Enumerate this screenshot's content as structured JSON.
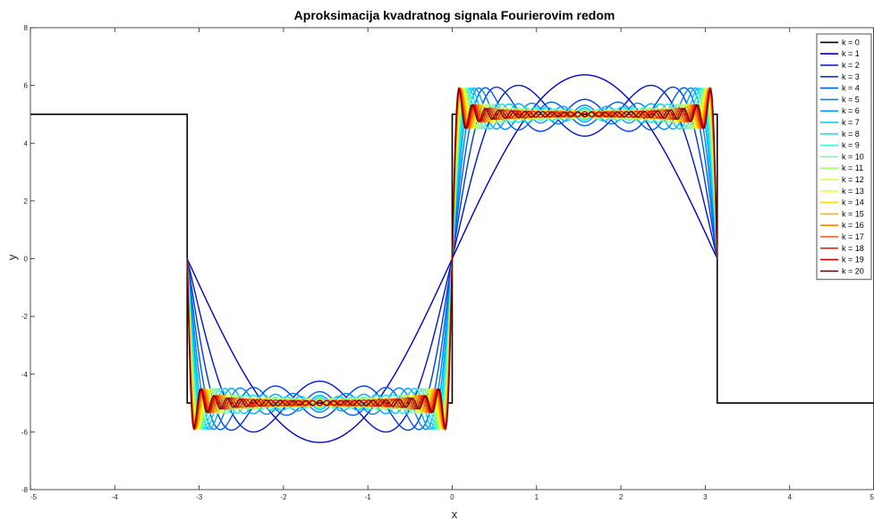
{
  "chart_data": {
    "type": "line",
    "title": "Aproksimacija kvadratnog signala Fourierovim redom",
    "xlabel": "x",
    "ylabel": "y",
    "xlim": [
      -5,
      5
    ],
    "ylim": [
      -8,
      8
    ],
    "xticks": [
      -5,
      -4,
      -3,
      -2,
      -1,
      0,
      1,
      2,
      3,
      4,
      5
    ],
    "yticks": [
      -8,
      -6,
      -4,
      -2,
      0,
      2,
      4,
      6,
      8
    ],
    "grid": false,
    "legend_position": "top-right",
    "square_wave": {
      "name": "k = 0",
      "color": "#000000",
      "x": [
        -5,
        -3.1416,
        -3.1416,
        -0.0001,
        0.0001,
        3.1416,
        3.1416,
        5
      ],
      "y": [
        5,
        5,
        -5,
        -5,
        5,
        5,
        -5,
        -5
      ]
    },
    "fourier": {
      "amplitude": 5,
      "x_range": [
        -3.1416,
        3.1416
      ],
      "series": [
        {
          "name": "k = 1",
          "k": 1,
          "color": "#0000c8"
        },
        {
          "name": "k = 2",
          "k": 2,
          "color": "#0014d6"
        },
        {
          "name": "k = 3",
          "k": 3,
          "color": "#0038e6"
        },
        {
          "name": "k = 4",
          "k": 4,
          "color": "#005cf2"
        },
        {
          "name": "k = 5",
          "k": 5,
          "color": "#0080ff"
        },
        {
          "name": "k = 6",
          "k": 6,
          "color": "#00a4ff"
        },
        {
          "name": "k = 7",
          "k": 7,
          "color": "#00c8ff"
        },
        {
          "name": "k = 8",
          "k": 8,
          "color": "#10e8f0"
        },
        {
          "name": "k = 9",
          "k": 9,
          "color": "#40ffd0"
        },
        {
          "name": "k = 10",
          "k": 10,
          "color": "#70ffa0"
        },
        {
          "name": "k = 11",
          "k": 11,
          "color": "#a0ff70"
        },
        {
          "name": "k = 12",
          "k": 12,
          "color": "#d0ff40"
        },
        {
          "name": "k = 13",
          "k": 13,
          "color": "#ffff00"
        },
        {
          "name": "k = 14",
          "k": 14,
          "color": "#ffd800"
        },
        {
          "name": "k = 15",
          "k": 15,
          "color": "#ffb000"
        },
        {
          "name": "k = 16",
          "k": 16,
          "color": "#ff8400"
        },
        {
          "name": "k = 17",
          "k": 17,
          "color": "#ff5000"
        },
        {
          "name": "k = 18",
          "k": 18,
          "color": "#f02000"
        },
        {
          "name": "k = 19",
          "k": 19,
          "color": "#c80000"
        },
        {
          "name": "k = 20",
          "k": 20,
          "color": "#800000"
        }
      ]
    }
  }
}
